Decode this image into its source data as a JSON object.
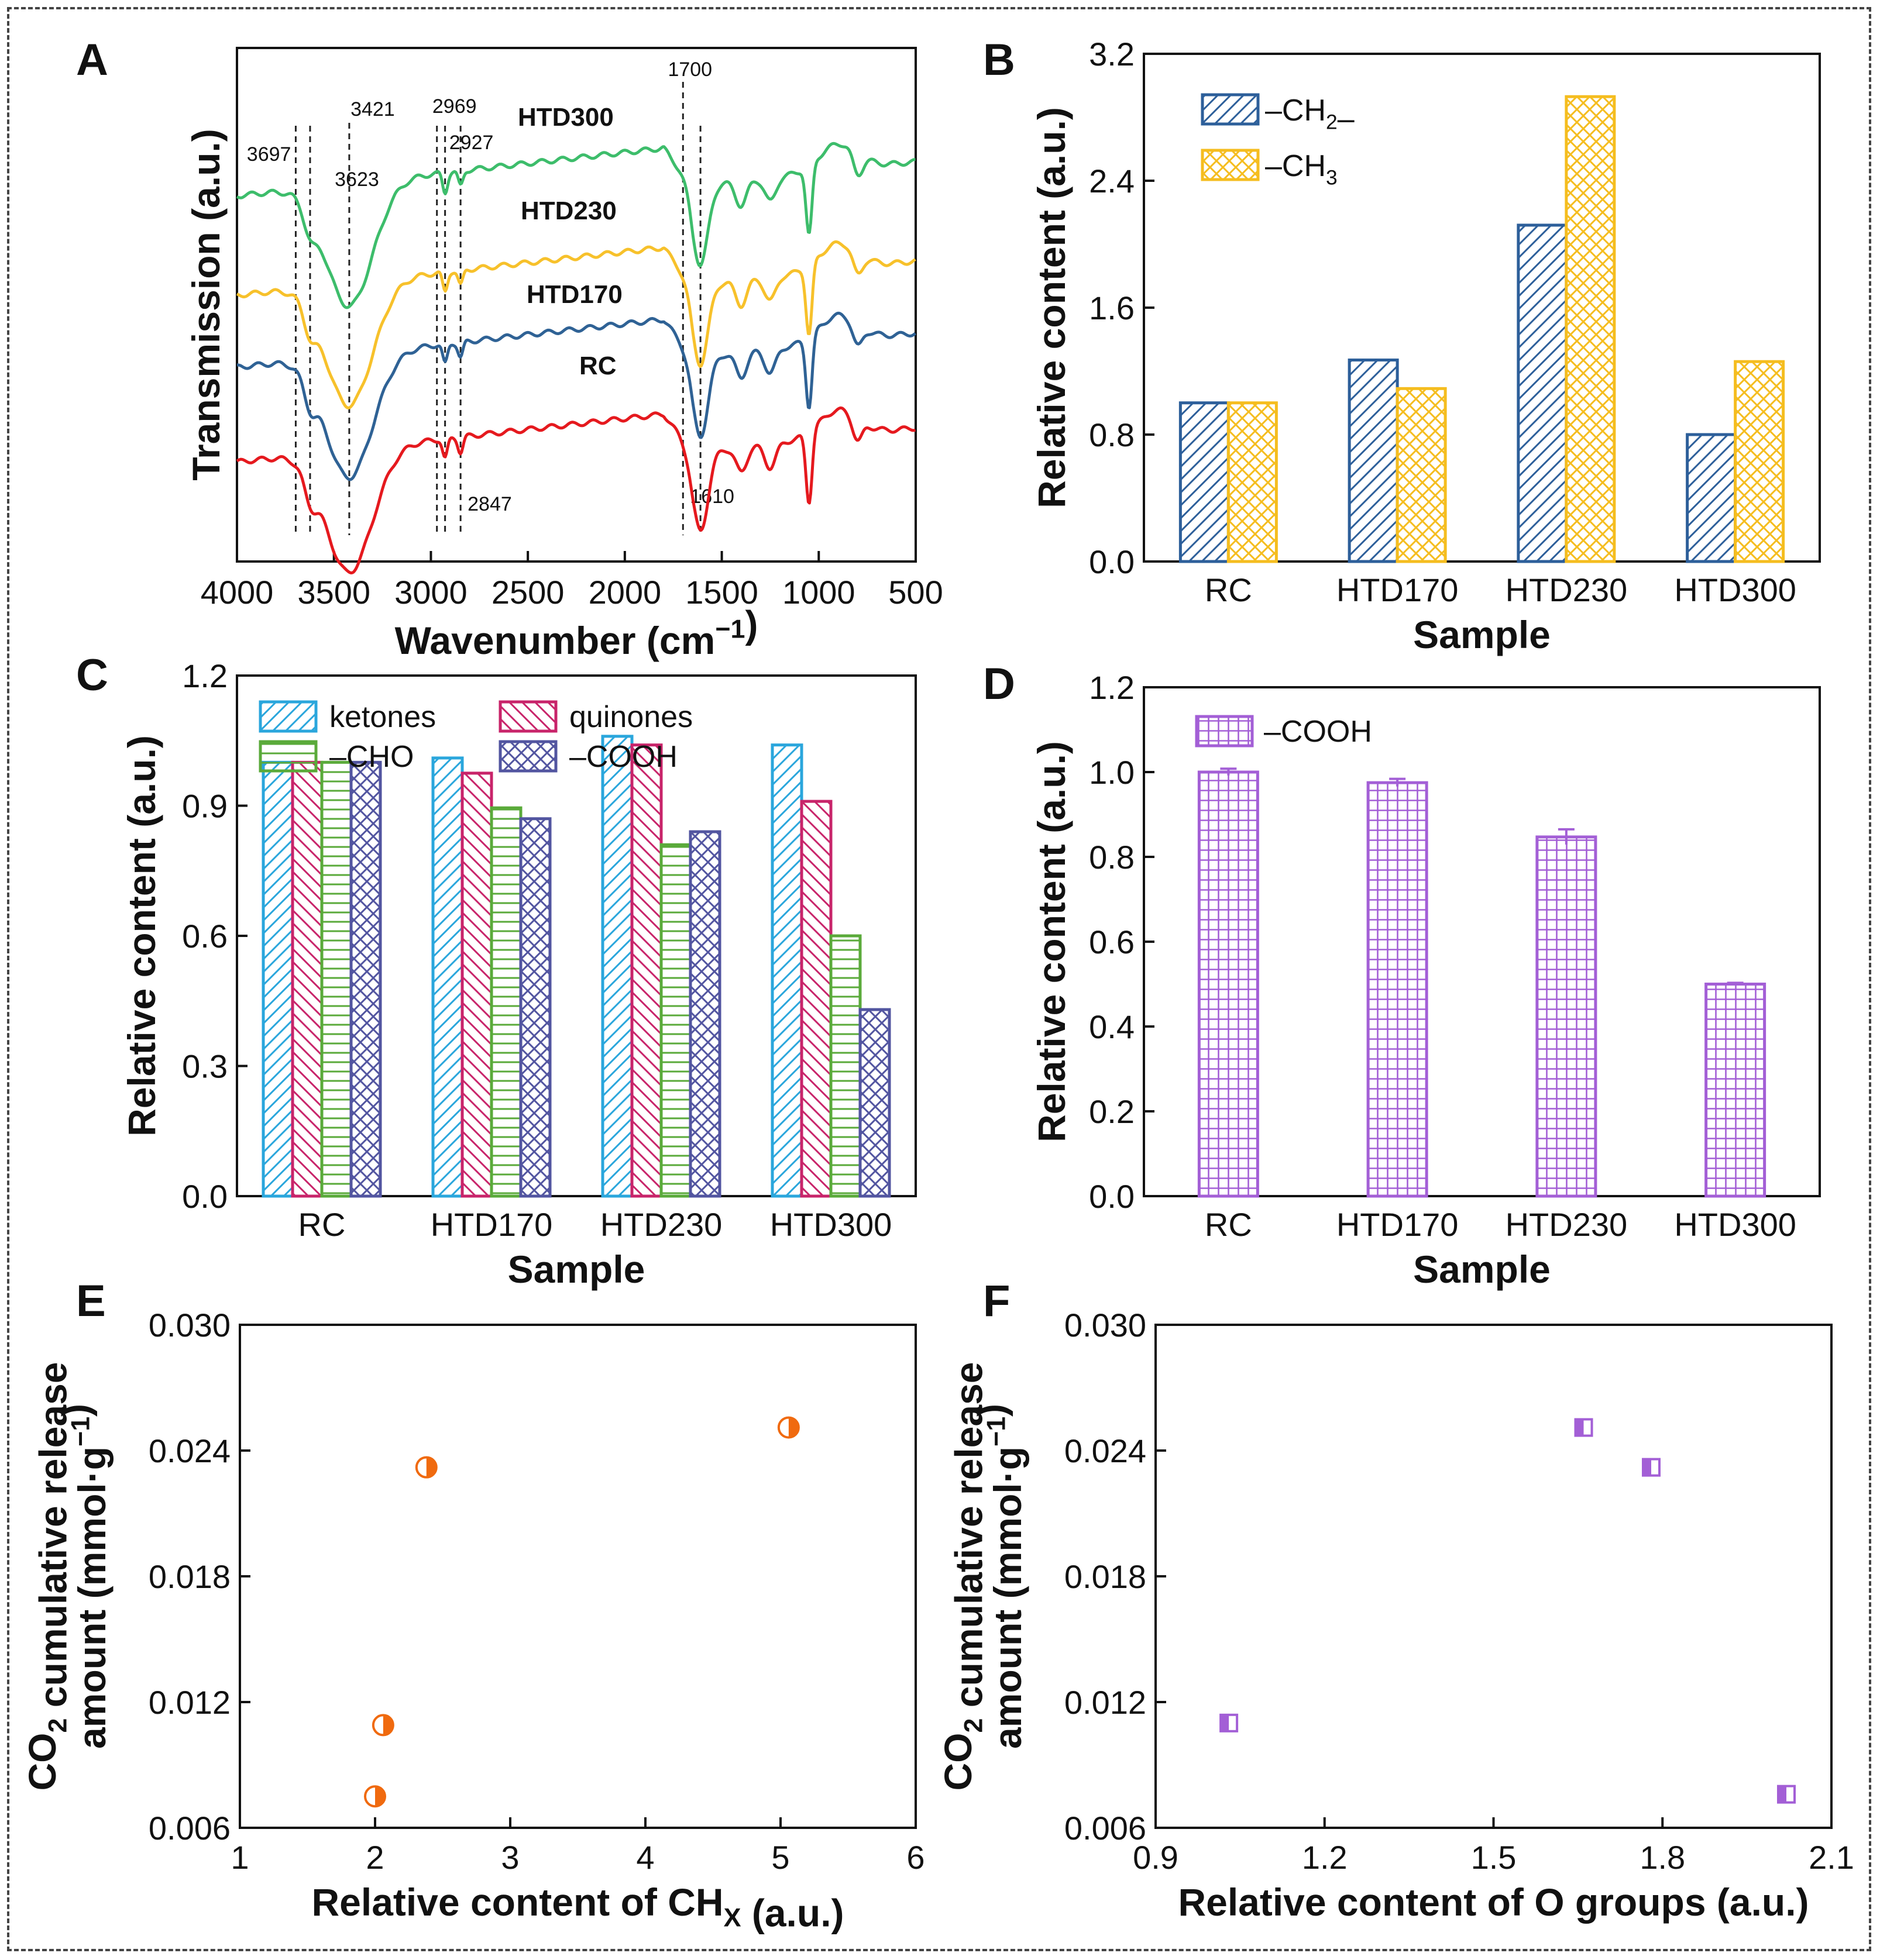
{
  "colors": {
    "blue": "#2d5f9a",
    "yellow": "#f5bd1f",
    "cyan": "#2aa6dc",
    "magenta": "#c8246a",
    "green": "#5aaa3a",
    "navy": "#5255a0",
    "purple": "#a35fd6",
    "orange": "#f06a0f",
    "ftir_green": "#3dbd6b",
    "ftir_yellow": "#f7c12b",
    "ftir_blue": "#2f6295",
    "ftir_red": "#e5191e"
  },
  "chart_data": [
    {
      "id": "A",
      "type": "line",
      "panel_label": "A",
      "xlabel": "Wavenumber (cm",
      "xlabel_sup": "−1",
      "xlabel_end": ")",
      "ylabel": "Transmission (a.u.)",
      "xlim": [
        4000,
        500
      ],
      "xticks": [
        4000,
        3500,
        3000,
        2500,
        2000,
        1500,
        1000,
        500
      ],
      "series": [
        {
          "name": "HTD300",
          "color_key": "ftir_green",
          "offset": 3.0
        },
        {
          "name": "HTD230",
          "color_key": "ftir_yellow",
          "offset": 2.0
        },
        {
          "name": "HTD170",
          "color_key": "ftir_blue",
          "offset": 1.0
        },
        {
          "name": "RC",
          "color_key": "ftir_red",
          "offset": 0.0
        }
      ],
      "reference_lines": [
        3697,
        3623,
        3421,
        2969,
        2927,
        2847,
        1700,
        1610
      ],
      "annotations": [
        "3697",
        "3623",
        "3421",
        "2969",
        "2927",
        "2847",
        "1700",
        "1610"
      ]
    },
    {
      "id": "B",
      "type": "bar",
      "panel_label": "B",
      "xlabel": "Sample",
      "ylabel": "Relative content (a.u.)",
      "categories": [
        "RC",
        "HTD170",
        "HTD230",
        "HTD300"
      ],
      "ylim": [
        0.0,
        3.2
      ],
      "yticks": [
        "0.0",
        "0.8",
        "1.6",
        "2.4",
        "3.2"
      ],
      "series": [
        {
          "name": "–CH",
          "sub": "2",
          "tail": "–",
          "color_key": "blue",
          "pattern": "diag",
          "values": [
            1.0,
            1.27,
            2.12,
            0.8
          ]
        },
        {
          "name": "–CH",
          "sub": "3",
          "tail": "",
          "color_key": "yellow",
          "pattern": "cross",
          "values": [
            1.0,
            1.09,
            2.93,
            1.26
          ]
        }
      ]
    },
    {
      "id": "C",
      "type": "bar",
      "panel_label": "C",
      "xlabel": "Sample",
      "ylabel": "Relative content (a.u.)",
      "categories": [
        "RC",
        "HTD170",
        "HTD230",
        "HTD300"
      ],
      "ylim": [
        0.0,
        1.2
      ],
      "yticks": [
        "0.0",
        "0.3",
        "0.6",
        "0.9",
        "1.2"
      ],
      "series": [
        {
          "name": "ketones",
          "color_key": "cyan",
          "pattern": "diag",
          "values": [
            1.0,
            1.01,
            1.06,
            1.04
          ]
        },
        {
          "name": "quinones",
          "color_key": "magenta",
          "pattern": "anti",
          "values": [
            1.0,
            0.975,
            1.04,
            0.91
          ]
        },
        {
          "name": "–CHO",
          "color_key": "green",
          "pattern": "horiz",
          "values": [
            1.0,
            0.895,
            0.81,
            0.6
          ]
        },
        {
          "name": "–COOH",
          "color_key": "navy",
          "pattern": "cross",
          "values": [
            1.0,
            0.87,
            0.84,
            0.43
          ]
        }
      ]
    },
    {
      "id": "D",
      "type": "bar",
      "panel_label": "D",
      "xlabel": "Sample",
      "ylabel": "Relative content (a.u.)",
      "categories": [
        "RC",
        "HTD170",
        "HTD230",
        "HTD300"
      ],
      "ylim": [
        0.0,
        1.2
      ],
      "yticks": [
        "0.0",
        "0.2",
        "0.4",
        "0.6",
        "0.8",
        "1.0",
        "1.2"
      ],
      "series": [
        {
          "name": "–COOH",
          "color_key": "purple",
          "pattern": "grid",
          "values": [
            1.0,
            0.975,
            0.847,
            0.5
          ],
          "errors": [
            0.008,
            0.009,
            0.018,
            0.003
          ]
        }
      ]
    },
    {
      "id": "E",
      "type": "scatter",
      "panel_label": "E",
      "xlabel": "Relative content of CH",
      "xlabel_sub": "X",
      "xlabel_end": " (a.u.)",
      "ylabel_line1_pre": "CO",
      "ylabel_line1_sub": "2",
      "ylabel_line1_post": " cumulative release",
      "ylabel_line2_pre": "amount (mmol·g",
      "ylabel_line2_sup": "−1",
      "ylabel_line2_post": ")",
      "xlim": [
        1,
        6
      ],
      "ylim": [
        0.006,
        0.03
      ],
      "xticks": [
        "1",
        "2",
        "3",
        "4",
        "5",
        "6"
      ],
      "yticks": [
        "0.006",
        "0.012",
        "0.018",
        "0.024",
        "0.030"
      ],
      "color_key": "orange",
      "x": [
        2.0,
        2.06,
        2.38,
        5.06
      ],
      "y": [
        0.0075,
        0.0109,
        0.0232,
        0.0251
      ]
    },
    {
      "id": "F",
      "type": "scatter",
      "panel_label": "F",
      "xlabel": "Relative content of O groups",
      "xlabel_end": " (a.u.)",
      "ylabel_line1_pre": "CO",
      "ylabel_line1_sub": "2",
      "ylabel_line1_post": " cumulative release",
      "ylabel_line2_pre": "amount (mmol·g",
      "ylabel_line2_sup": "−1",
      "ylabel_line2_post": ")",
      "xlim": [
        0.9,
        2.1
      ],
      "ylim": [
        0.006,
        0.03
      ],
      "xticks": [
        "0.9",
        "1.2",
        "1.5",
        "1.8",
        "2.1"
      ],
      "yticks": [
        "0.006",
        "0.012",
        "0.018",
        "0.024",
        "0.030"
      ],
      "color_key": "purple",
      "x": [
        1.03,
        1.66,
        1.78,
        2.02
      ],
      "y": [
        0.011,
        0.0251,
        0.0232,
        0.0076
      ]
    }
  ]
}
